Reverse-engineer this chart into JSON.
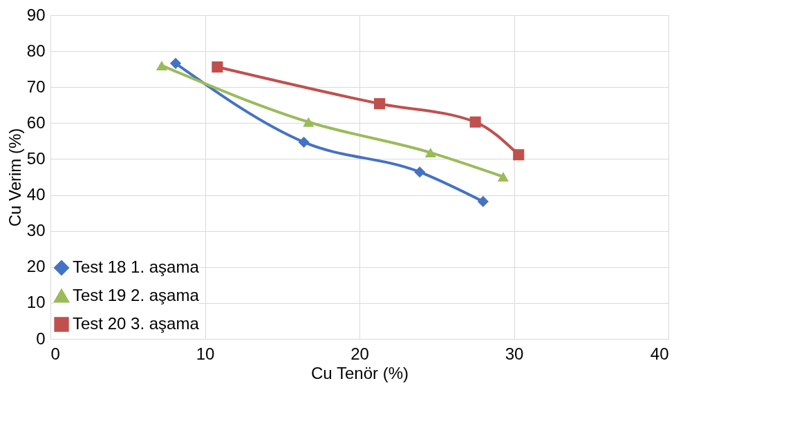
{
  "chart_data": {
    "type": "line",
    "xlabel": "Cu Tenör (%)",
    "ylabel": "Cu Verim (%)",
    "xlim": [
      0,
      40
    ],
    "xticks": [
      0,
      10,
      20,
      30,
      40
    ],
    "ylim": [
      0,
      90
    ],
    "yticks": [
      0,
      10,
      20,
      30,
      40,
      50,
      60,
      70,
      80,
      90
    ],
    "grid": true,
    "legend": "bottom left",
    "line_style": "solid",
    "series": [
      {
        "name": "Test 18 1. aşama",
        "color": "#4472c4",
        "marker": "diamond",
        "x": [
          8.1,
          16.4,
          23.9,
          28.0
        ],
        "values": [
          76.6,
          54.7,
          46.4,
          38.2
        ]
      },
      {
        "name": "Test 19 2. aşama",
        "color": "#9bbb59",
        "marker": "triangle",
        "x": [
          7.2,
          16.7,
          24.6,
          29.3
        ],
        "values": [
          76.0,
          60.3,
          51.8,
          45.1
        ]
      },
      {
        "name": "Test 20 3. aşama",
        "color": "#c0504d",
        "marker": "square",
        "x": [
          10.8,
          21.3,
          27.5,
          30.3
        ],
        "values": [
          75.6,
          65.4,
          60.3,
          51.2
        ]
      }
    ]
  }
}
